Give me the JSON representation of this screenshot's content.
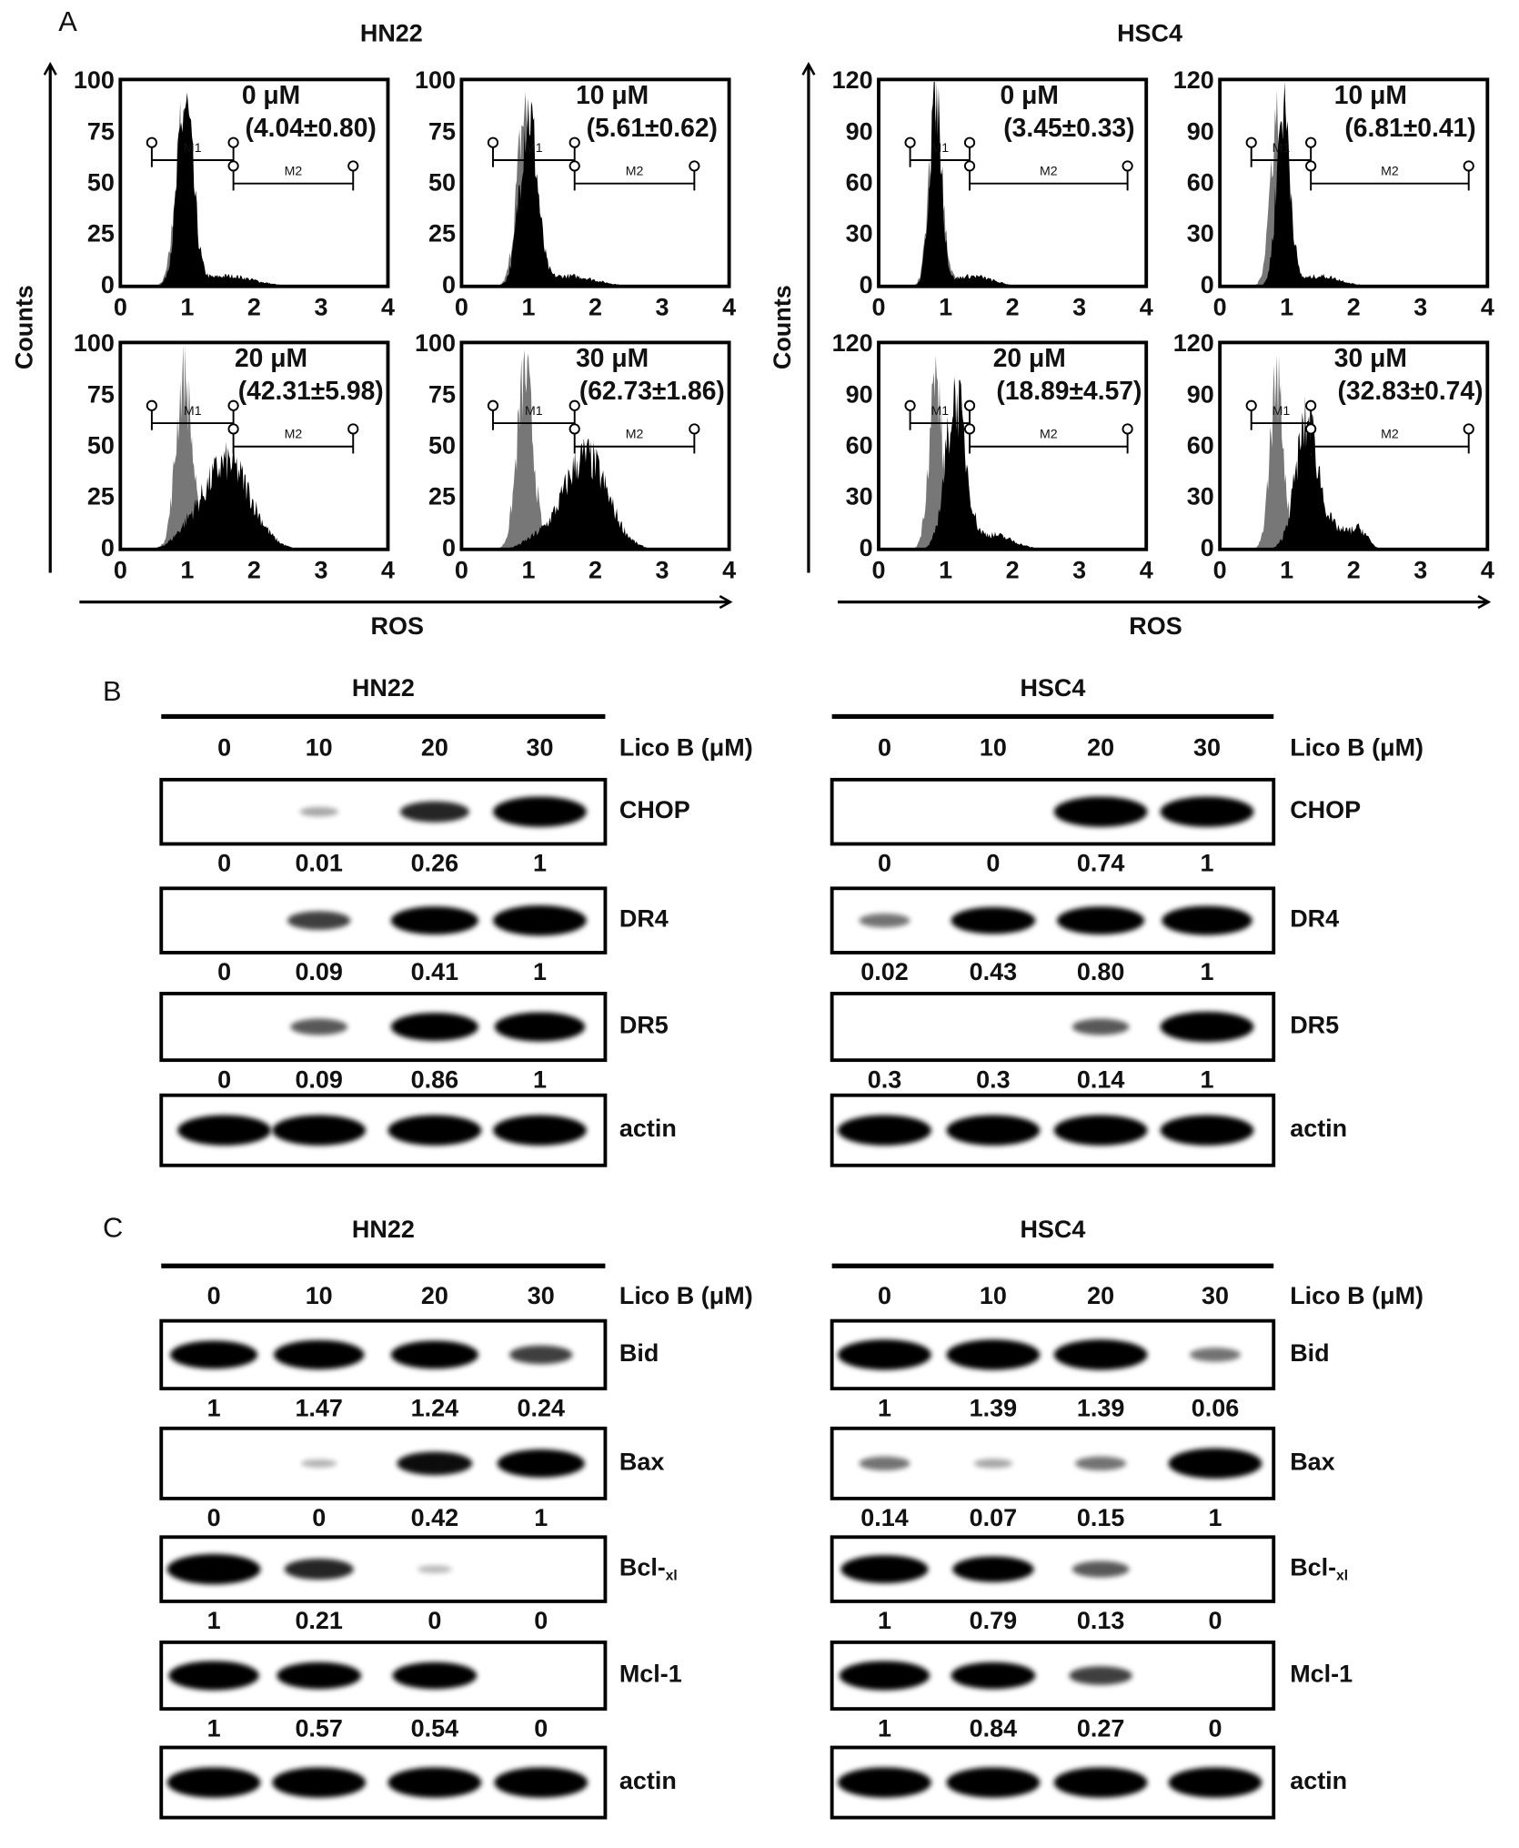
{
  "panel_a": {
    "label": "A",
    "y_label": "Counts",
    "x_label": "ROS",
    "gates": [
      "M1",
      "M2"
    ],
    "groups": [
      {
        "title": "HN22",
        "xticks": [
          0,
          1,
          2,
          3,
          4
        ],
        "yticks": [
          0,
          25,
          50,
          75,
          100
        ],
        "plots": [
          {
            "dose": "0 μM",
            "ratio": "(4.04±0.80)"
          },
          {
            "dose": "10 μM",
            "ratio": "(5.61±0.62)"
          },
          {
            "dose": "20 μM",
            "ratio": "(42.31±5.98)"
          },
          {
            "dose": "30 μM",
            "ratio": "(62.73±1.86)"
          }
        ]
      },
      {
        "title": "HSC4",
        "xticks": [
          0,
          1,
          2,
          3,
          4
        ],
        "yticks": [
          0,
          30,
          60,
          90,
          120
        ],
        "plots": [
          {
            "dose": "0 μM",
            "ratio": "(3.45±0.33)"
          },
          {
            "dose": "10 μM",
            "ratio": "(6.81±0.41)"
          },
          {
            "dose": "20 μM",
            "ratio": "(18.89±4.57)"
          },
          {
            "dose": "30 μM",
            "ratio": "(32.83±0.74)"
          }
        ]
      }
    ]
  },
  "panel_b": {
    "label": "B",
    "groups": [
      {
        "title": "HN22",
        "dose_label": "Lico B (μM)",
        "doses": [
          "0",
          "10",
          "20",
          "30"
        ],
        "blots": [
          {
            "protein": "CHOP",
            "values": [
              "0",
              "0.01",
              "0.26",
              "1"
            ]
          },
          {
            "protein": "DR4",
            "values": [
              "0",
              "0.09",
              "0.41",
              "1"
            ]
          },
          {
            "protein": "DR5",
            "values": [
              "0",
              "0.09",
              "0.86",
              "1"
            ]
          },
          {
            "protein": "actin"
          }
        ]
      },
      {
        "title": "HSC4",
        "dose_label": "Lico B (μM)",
        "doses": [
          "0",
          "10",
          "20",
          "30"
        ],
        "blots": [
          {
            "protein": "CHOP",
            "values": [
              "0",
              "0",
              "0.74",
              "1"
            ]
          },
          {
            "protein": "DR4",
            "values": [
              "0.02",
              "0.43",
              "0.80",
              "1"
            ]
          },
          {
            "protein": "DR5",
            "values": [
              "0.3",
              "0.3",
              "0.14",
              "1"
            ]
          },
          {
            "protein": "actin"
          }
        ]
      }
    ]
  },
  "panel_c": {
    "label": "C",
    "groups": [
      {
        "title": "HN22",
        "dose_label": "Lico B (μM)",
        "doses": [
          "0",
          "10",
          "20",
          "30"
        ],
        "blots": [
          {
            "protein": "Bid",
            "values": [
              "1",
              "1.47",
              "1.24",
              "0.24"
            ]
          },
          {
            "protein": "Bax",
            "values": [
              "0",
              "0",
              "0.42",
              "1"
            ]
          },
          {
            "protein": "Bcl-",
            "subscript": "xl",
            "values": [
              "1",
              "0.21",
              "0",
              "0"
            ]
          },
          {
            "protein": "Mcl-1",
            "values": [
              "1",
              "0.57",
              "0.54",
              "0"
            ]
          },
          {
            "protein": "actin"
          }
        ]
      },
      {
        "title": "HSC4",
        "dose_label": "Lico B (μM)",
        "doses": [
          "0",
          "10",
          "20",
          "30"
        ],
        "blots": [
          {
            "protein": "Bid",
            "values": [
              "1",
              "1.39",
              "1.39",
              "0.06"
            ]
          },
          {
            "protein": "Bax",
            "values": [
              "0.14",
              "0.07",
              "0.15",
              "1"
            ]
          },
          {
            "protein": "Bcl-",
            "subscript": "xl",
            "values": [
              "1",
              "0.79",
              "0.13",
              "0"
            ]
          },
          {
            "protein": "Mcl-1",
            "values": [
              "1",
              "0.84",
              "0.27",
              "0"
            ]
          },
          {
            "protein": "actin"
          }
        ]
      }
    ]
  }
}
